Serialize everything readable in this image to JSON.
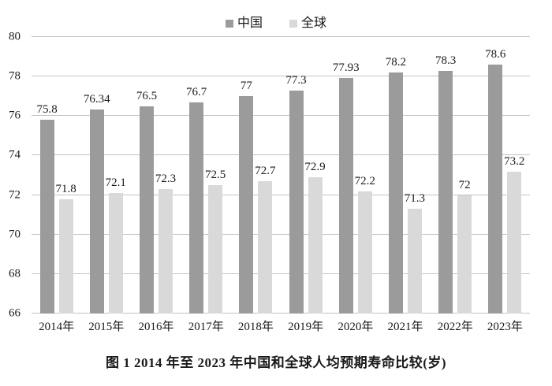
{
  "figure": {
    "caption": "图 1  2014 年至 2023 年中国和全球人均预期寿命比较(岁)"
  },
  "colors": {
    "china_bar": "#9b9b9b",
    "global_bar": "#d9d9d9",
    "gridline": "#c3c3c3",
    "text": "#1a1a1a",
    "background": "#ffffff"
  },
  "chart_data": {
    "type": "bar",
    "title": "图 1  2014 年至 2023 年中国和全球人均预期寿命比较(岁)",
    "categories": [
      "2014年",
      "2015年",
      "2016年",
      "2017年",
      "2018年",
      "2019年",
      "2020年",
      "2021年",
      "2022年",
      "2023年"
    ],
    "series": [
      {
        "name": "中国",
        "color": "#9b9b9b",
        "values": [
          75.8,
          76.34,
          76.5,
          76.7,
          77,
          77.3,
          77.93,
          78.2,
          78.3,
          78.6
        ],
        "labels": [
          "75.8",
          "76.34",
          "76.5",
          "76.7",
          "77",
          "77.3",
          "77.93",
          "78.2",
          "78.3",
          "78.6"
        ]
      },
      {
        "name": "全球",
        "color": "#d9d9d9",
        "values": [
          71.8,
          72.1,
          72.3,
          72.5,
          72.7,
          72.9,
          72.2,
          71.3,
          72,
          73.2
        ],
        "labels": [
          "71.8",
          "72.1",
          "72.3",
          "72.5",
          "72.7",
          "72.9",
          "72.2",
          "71.3",
          "72",
          "73.2"
        ]
      }
    ],
    "xlabel": "",
    "ylabel": "",
    "ylim": [
      66,
      80
    ],
    "yticks": [
      80,
      78,
      76,
      74,
      72,
      70,
      68,
      66
    ],
    "grid": true,
    "legend_position": "top"
  }
}
